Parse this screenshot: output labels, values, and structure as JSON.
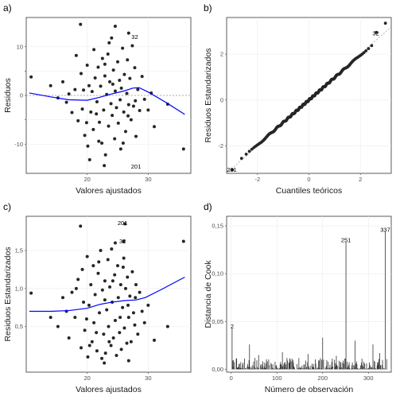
{
  "chart_data": [
    {
      "id": "a",
      "type": "scatter",
      "panel_label": "a)",
      "xlabel": "Valores ajustados",
      "ylabel": "Residuos",
      "xlim": [
        10,
        37
      ],
      "ylim": [
        -16,
        16
      ],
      "xticks": [
        20,
        30
      ],
      "yticks": [
        -10,
        -5,
        0,
        5,
        10
      ],
      "ytick_labels": [
        "-10",
        "",
        "0",
        "",
        "10"
      ],
      "hline": 0,
      "smooth_color": "#0000ff",
      "smooth": {
        "x": [
          10.5,
          14,
          17,
          20,
          22,
          24,
          26,
          27.5,
          28.5,
          30,
          33,
          36
        ],
        "y": [
          0.5,
          -0.3,
          -0.9,
          -1.0,
          -0.4,
          0.3,
          0.9,
          1.5,
          1.6,
          0.7,
          -1.5,
          -3.9
        ]
      },
      "labels": [
        {
          "text": "32",
          "x": 27.8,
          "y": 12.0
        },
        {
          "text": "201",
          "x": 28.0,
          "y": -14.6
        }
      ],
      "points": [
        [
          10.8,
          3.8
        ],
        [
          18.9,
          14.6
        ],
        [
          35.8,
          -11.0
        ],
        [
          30.5,
          0.5
        ],
        [
          14,
          2
        ],
        [
          15.2,
          -0.5
        ],
        [
          16,
          2.8
        ],
        [
          17,
          0.3
        ],
        [
          17.5,
          -3.5
        ],
        [
          18,
          1.2
        ],
        [
          18.5,
          -5.2
        ],
        [
          19,
          4.5
        ],
        [
          19.2,
          -2.8
        ],
        [
          19.6,
          -8.2
        ],
        [
          20,
          6.2
        ],
        [
          20.1,
          -10.4
        ],
        [
          20.3,
          2
        ],
        [
          20.6,
          -3.4
        ],
        [
          20.8,
          0.8
        ],
        [
          21,
          -7
        ],
        [
          21.1,
          9.4
        ],
        [
          21.3,
          3.6
        ],
        [
          21.6,
          -1.3
        ],
        [
          21.8,
          5.8
        ],
        [
          22,
          -5.5
        ],
        [
          22.2,
          1.9
        ],
        [
          22.4,
          -9.8
        ],
        [
          22.5,
          7.6
        ],
        [
          22.7,
          -3
        ],
        [
          22.9,
          4
        ],
        [
          23,
          -12.2
        ],
        [
          23.2,
          0.2
        ],
        [
          23.4,
          8.5
        ],
        [
          23.5,
          -6.3
        ],
        [
          23.7,
          2.8
        ],
        [
          23.9,
          -1.7
        ],
        [
          24,
          11.8
        ],
        [
          24.1,
          -4.1
        ],
        [
          24.3,
          5.2
        ],
        [
          24.5,
          -8.9
        ],
        [
          24.6,
          0.9
        ],
        [
          24.8,
          -2.5
        ],
        [
          25,
          6.9
        ],
        [
          25.1,
          -5.7
        ],
        [
          25.3,
          3.1
        ],
        [
          25.5,
          -11
        ],
        [
          25.6,
          1.5
        ],
        [
          25.8,
          9.7
        ],
        [
          26,
          -3.4
        ],
        [
          26.1,
          4.3
        ],
        [
          26.3,
          -7.4
        ],
        [
          26.5,
          0.4
        ],
        [
          26.6,
          7.3
        ],
        [
          26.8,
          -1.9
        ],
        [
          27,
          3.5
        ],
        [
          27.2,
          -5
        ],
        [
          27.4,
          10.2
        ],
        [
          27.6,
          -2.2
        ],
        [
          27.8,
          5.7
        ],
        [
          28,
          -8.4
        ],
        [
          28.3,
          1.2
        ],
        [
          28.6,
          -3.1
        ],
        [
          29,
          3.9
        ],
        [
          29.4,
          -0.8
        ],
        [
          30,
          -3
        ],
        [
          31,
          -6.4
        ],
        [
          33.2,
          -1.8
        ],
        [
          16.6,
          -1.4
        ],
        [
          18.2,
          8.2
        ],
        [
          19.9,
          -5.6
        ],
        [
          21.5,
          -3.8
        ],
        [
          22.9,
          6.4
        ],
        [
          24.2,
          2.3
        ],
        [
          25.4,
          -0.9
        ],
        [
          26.7,
          -4.2
        ],
        [
          27.9,
          -1.1
        ],
        [
          19.4,
          1.1
        ],
        [
          21.9,
          -9.4
        ],
        [
          23.6,
          10.8
        ],
        [
          25.9,
          -9.8
        ],
        [
          20.4,
          -13.2
        ],
        [
          22.8,
          -14.4
        ],
        [
          24.6,
          14.2
        ],
        [
          26.8,
          12.8
        ]
      ]
    },
    {
      "id": "b",
      "type": "scatter",
      "panel_label": "b)",
      "xlabel": "Cuantiles teóricos",
      "ylabel": "Residuos Estandarizados",
      "xlim": [
        -3.2,
        3.2
      ],
      "ylim": [
        -3.2,
        3.6
      ],
      "xticks": [
        -2,
        0,
        2
      ],
      "yticks": [
        -2,
        0,
        2
      ],
      "labels": [
        {
          "text": "32",
          "x": 2.6,
          "y": 2.9
        },
        {
          "text": "201",
          "x": -3.0,
          "y": -3.05
        }
      ],
      "qq_n": 340,
      "qq_slope": 1.0
    },
    {
      "id": "c",
      "type": "scatter",
      "panel_label": "c)",
      "xlabel": "Valores ajustados",
      "ylabel": "Residuos Estandarizados",
      "xlim": [
        10,
        37
      ],
      "ylim": [
        -0.1,
        1.95
      ],
      "xticks": [
        20,
        30
      ],
      "yticks": [
        0.5,
        1.0,
        1.5
      ],
      "ytick_labels": [
        "0,5",
        "1,0",
        "1,5"
      ],
      "smooth_color": "#0000ff",
      "smooth": {
        "x": [
          10.5,
          14,
          17,
          20,
          22,
          24,
          26,
          28,
          29.5,
          32,
          36
        ],
        "y": [
          0.7,
          0.7,
          0.71,
          0.74,
          0.79,
          0.82,
          0.84,
          0.85,
          0.88,
          0.98,
          1.15
        ]
      },
      "labels": [
        {
          "text": "201",
          "x": 25.8,
          "y": 1.86
        },
        {
          "text": "32",
          "x": 25.8,
          "y": 1.62
        }
      ],
      "points": [
        [
          10.8,
          0.94
        ],
        [
          18.9,
          1.82
        ],
        [
          35.8,
          1.62
        ],
        [
          26.2,
          1.85
        ],
        [
          26,
          1.62
        ],
        [
          14,
          0.62
        ],
        [
          15.2,
          0.5
        ],
        [
          16,
          0.88
        ],
        [
          17,
          0.35
        ],
        [
          17.5,
          0.95
        ],
        [
          18,
          0.62
        ],
        [
          18.5,
          1.12
        ],
        [
          19,
          0.22
        ],
        [
          19.2,
          1.25
        ],
        [
          19.6,
          0.45
        ],
        [
          20,
          1.42
        ],
        [
          20.1,
          0.1
        ],
        [
          20.3,
          0.78
        ],
        [
          20.6,
          1.05
        ],
        [
          20.8,
          0.3
        ],
        [
          21,
          1.3
        ],
        [
          21.1,
          0.55
        ],
        [
          21.3,
          0.92
        ],
        [
          21.6,
          0.18
        ],
        [
          21.8,
          1.2
        ],
        [
          22,
          0.68
        ],
        [
          22.2,
          1.5
        ],
        [
          22.4,
          0.08
        ],
        [
          22.5,
          0.98
        ],
        [
          22.7,
          0.4
        ],
        [
          22.9,
          1.1
        ],
        [
          23,
          0.15
        ],
        [
          23.2,
          0.72
        ],
        [
          23.4,
          1.38
        ],
        [
          23.5,
          0.5
        ],
        [
          23.7,
          1.02
        ],
        [
          23.9,
          0.25
        ],
        [
          24,
          1.52
        ],
        [
          24.1,
          0.82
        ],
        [
          24.3,
          0.35
        ],
        [
          24.5,
          1.18
        ],
        [
          24.6,
          0.58
        ],
        [
          24.8,
          0.12
        ],
        [
          25,
          1.3
        ],
        [
          25.1,
          0.88
        ],
        [
          25.3,
          0.42
        ],
        [
          25.5,
          1.05
        ],
        [
          25.6,
          0.2
        ],
        [
          25.8,
          0.75
        ],
        [
          26,
          1.4
        ],
        [
          26.1,
          0.48
        ],
        [
          26.3,
          1.0
        ],
        [
          26.5,
          0.28
        ],
        [
          26.6,
          1.15
        ],
        [
          26.8,
          0.62
        ],
        [
          27,
          0.9
        ],
        [
          27.2,
          0.3
        ],
        [
          27.4,
          1.22
        ],
        [
          27.6,
          0.68
        ],
        [
          27.8,
          0.52
        ],
        [
          28,
          1.05
        ],
        [
          28.3,
          0.4
        ],
        [
          28.6,
          0.95
        ],
        [
          29,
          0.7
        ],
        [
          29.4,
          0.55
        ],
        [
          30,
          0.78
        ],
        [
          31,
          0.32
        ],
        [
          33.2,
          0.5
        ],
        [
          16.6,
          0.7
        ],
        [
          18.2,
          1.0
        ],
        [
          19.9,
          0.6
        ],
        [
          21.5,
          0.42
        ],
        [
          22.9,
          0.85
        ],
        [
          24.2,
          1.1
        ],
        [
          25.4,
          0.62
        ],
        [
          26.7,
          0.78
        ],
        [
          27.9,
          0.88
        ],
        [
          19.4,
          0.82
        ],
        [
          21.9,
          1.35
        ],
        [
          23.6,
          0.3
        ],
        [
          25.9,
          1.28
        ],
        [
          20.4,
          0.25
        ],
        [
          22.8,
          0.02
        ],
        [
          24.6,
          1.6
        ],
        [
          26.8,
          0.05
        ]
      ]
    },
    {
      "id": "d",
      "type": "bar",
      "panel_label": "d)",
      "xlabel": "Número de observación",
      "ylabel": "Distancia de Cook",
      "xlim": [
        -10,
        350
      ],
      "ylim": [
        -0.003,
        0.16
      ],
      "xticks": [
        0,
        100,
        200,
        300
      ],
      "yticks": [
        0.0,
        0.05,
        0.1,
        0.15
      ],
      "ytick_labels": [
        "0,00",
        "0,05",
        "0,10",
        "0,15"
      ],
      "n_obs": 340,
      "labels": [
        {
          "text": "2",
          "x": 2,
          "y": 0.045
        },
        {
          "text": "251",
          "x": 251,
          "y": 0.135
        },
        {
          "text": "337",
          "x": 337,
          "y": 0.146
        }
      ],
      "spikes": [
        [
          2,
          0.043
        ],
        [
          251,
          0.133
        ],
        [
          337,
          0.144
        ],
        [
          200,
          0.033
        ],
        [
          271,
          0.03
        ],
        [
          40,
          0.026
        ],
        [
          310,
          0.026
        ],
        [
          112,
          0.018
        ],
        [
          168,
          0.016
        ],
        [
          60,
          0.015
        ],
        [
          230,
          0.014
        ],
        [
          325,
          0.017
        ]
      ]
    }
  ]
}
